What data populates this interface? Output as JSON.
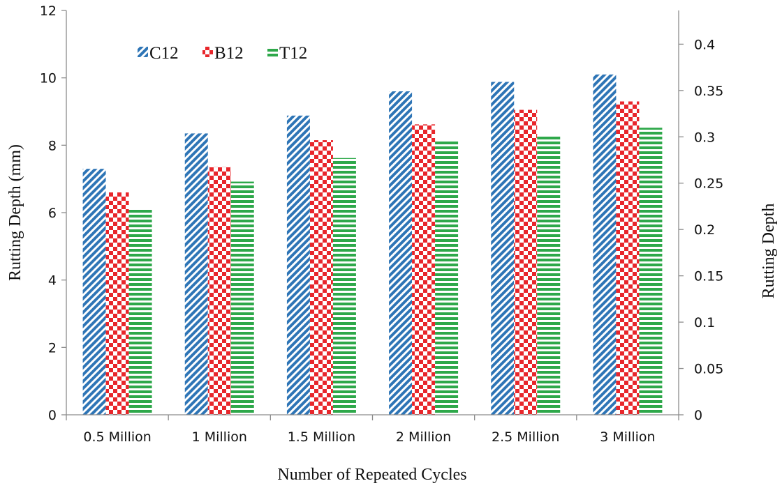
{
  "chart_data": {
    "type": "bar",
    "categories": [
      "0.5 Million",
      "1 Million",
      "1.5 Million",
      "2 Million",
      "2.5 Million",
      "3 Million"
    ],
    "series": [
      {
        "name": "C12",
        "values": [
          7.3,
          8.35,
          8.88,
          9.6,
          9.88,
          10.1
        ],
        "color": "#2E75B6",
        "pattern": "diagonal-stripes"
      },
      {
        "name": "B12",
        "values": [
          6.6,
          7.35,
          8.15,
          8.62,
          9.05,
          9.3
        ],
        "color": "#E8262B",
        "pattern": "checkerboard"
      },
      {
        "name": "T12",
        "values": [
          6.1,
          6.92,
          7.62,
          8.12,
          8.3,
          8.52
        ],
        "color": "#2EA84A",
        "pattern": "horizontal-stripes"
      }
    ],
    "xlabel": "Number of Repeated Cycles",
    "ylabel": "Rutting Depth (mm)",
    "y2label": "Rutting Depth",
    "ylim": [
      0,
      12
    ],
    "yticks": [
      "0",
      "2",
      "4",
      "6",
      "8",
      "10",
      "12"
    ],
    "y2lim": [
      0,
      0.4364
    ],
    "y2ticks": [
      "0",
      "0.05",
      "0.1",
      "0.15",
      "0.2",
      "0.25",
      "0.3",
      "0.35",
      "0.4"
    ],
    "y2tick_values": [
      0,
      0.05,
      0.1,
      0.15,
      0.2,
      0.25,
      0.3,
      0.35,
      0.4
    ],
    "grid": false,
    "legend": "top-left"
  }
}
